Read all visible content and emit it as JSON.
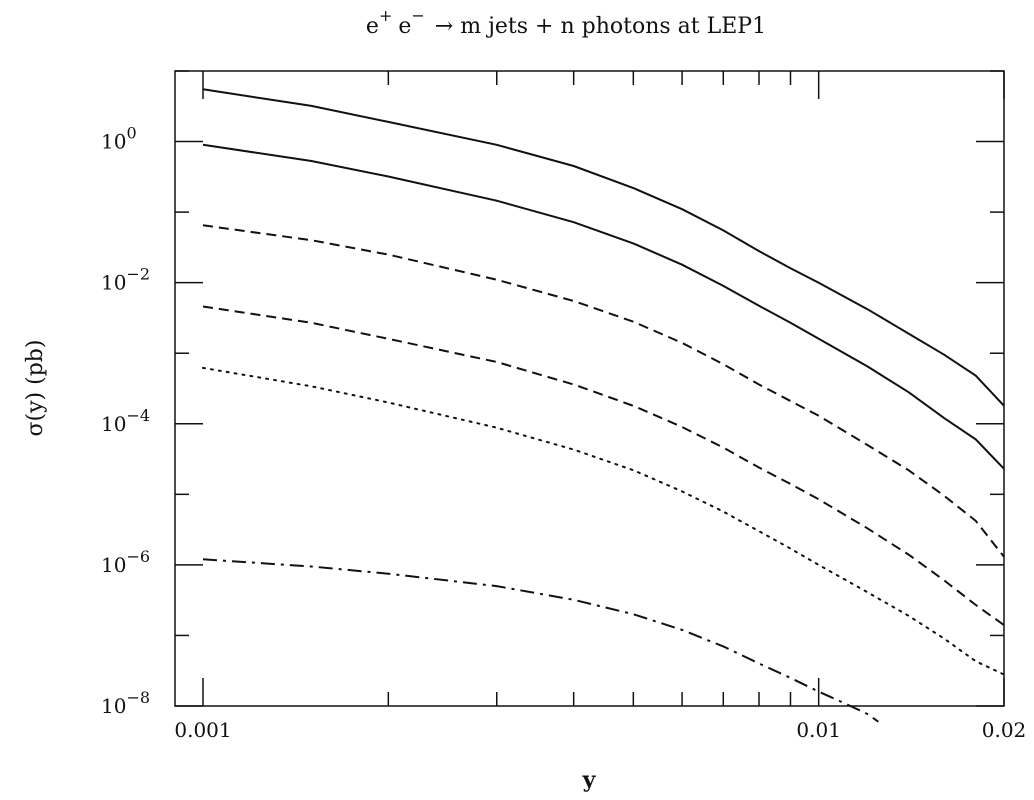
{
  "chart_data": {
    "type": "line",
    "title": "e+ e− → m jets + n photons at LEP1",
    "title_parts": {
      "lhs_e1": "e",
      "sup1": "+",
      "lhs_e2": "e",
      "sup2": "−",
      "rest": "→ m jets + n photons at LEP1"
    },
    "xlabel": "y",
    "ylabel": "σ(y) (pb)",
    "x_scale": "log",
    "y_scale": "log",
    "xlim": [
      0.001,
      0.02
    ],
    "ylim": [
      1e-08,
      10
    ],
    "x_ticks": [
      {
        "value": 0.001,
        "label": "0.001"
      },
      {
        "value": 0.01,
        "label": "0.01"
      },
      {
        "value": 0.02,
        "label": "0.02"
      }
    ],
    "y_ticks": [
      {
        "value": 1,
        "base": "10",
        "exp": "0"
      },
      {
        "value": 0.01,
        "base": "10",
        "exp": "−2"
      },
      {
        "value": 0.0001,
        "base": "10",
        "exp": "−4"
      },
      {
        "value": 1e-06,
        "base": "10",
        "exp": "−6"
      },
      {
        "value": 1e-08,
        "base": "10",
        "exp": "−8"
      }
    ],
    "grid": false,
    "legend": "none",
    "series": [
      {
        "style": "solid",
        "points": [
          [
            0.001,
            5.5
          ],
          [
            0.0015,
            3.2
          ],
          [
            0.002,
            1.9
          ],
          [
            0.003,
            0.9
          ],
          [
            0.004,
            0.45
          ],
          [
            0.005,
            0.22
          ],
          [
            0.006,
            0.11
          ],
          [
            0.007,
            0.055
          ],
          [
            0.008,
            0.028
          ],
          [
            0.009,
            0.016
          ],
          [
            0.01,
            0.01
          ],
          [
            0.012,
            0.0042
          ],
          [
            0.014,
            0.0019
          ],
          [
            0.016,
            0.00095
          ],
          [
            0.018,
            0.00048
          ],
          [
            0.02,
            0.00018
          ]
        ]
      },
      {
        "style": "solid",
        "points": [
          [
            0.001,
            0.9
          ],
          [
            0.0015,
            0.53
          ],
          [
            0.002,
            0.32
          ],
          [
            0.003,
            0.145
          ],
          [
            0.004,
            0.072
          ],
          [
            0.005,
            0.036
          ],
          [
            0.006,
            0.018
          ],
          [
            0.007,
            0.009
          ],
          [
            0.008,
            0.0047
          ],
          [
            0.009,
            0.0027
          ],
          [
            0.01,
            0.0016
          ],
          [
            0.012,
            0.00065
          ],
          [
            0.014,
            0.00028
          ],
          [
            0.016,
            0.00012
          ],
          [
            0.018,
            6e-05
          ],
          [
            0.02,
            2.3e-05
          ]
        ]
      },
      {
        "style": "dashed",
        "points": [
          [
            0.001,
            0.065
          ],
          [
            0.0015,
            0.04
          ],
          [
            0.002,
            0.025
          ],
          [
            0.003,
            0.011
          ],
          [
            0.004,
            0.0055
          ],
          [
            0.005,
            0.0028
          ],
          [
            0.006,
            0.0014
          ],
          [
            0.007,
            0.0007
          ],
          [
            0.008,
            0.00036
          ],
          [
            0.009,
            0.00021
          ],
          [
            0.01,
            0.00013
          ],
          [
            0.012,
            5e-05
          ],
          [
            0.014,
            2.2e-05
          ],
          [
            0.016,
            9.5e-06
          ],
          [
            0.018,
            4.2e-06
          ],
          [
            0.02,
            1.3e-06
          ]
        ]
      },
      {
        "style": "dashed",
        "points": [
          [
            0.001,
            0.0046
          ],
          [
            0.0015,
            0.0027
          ],
          [
            0.002,
            0.0016
          ],
          [
            0.003,
            0.00075
          ],
          [
            0.004,
            0.00036
          ],
          [
            0.005,
            0.00018
          ],
          [
            0.006,
            9e-05
          ],
          [
            0.007,
            4.6e-05
          ],
          [
            0.008,
            2.4e-05
          ],
          [
            0.009,
            1.4e-05
          ],
          [
            0.01,
            8.5e-06
          ],
          [
            0.012,
            3.3e-06
          ],
          [
            0.014,
            1.4e-06
          ],
          [
            0.016,
            6e-07
          ],
          [
            0.018,
            2.7e-07
          ],
          [
            0.02,
            1.4e-07
          ]
        ]
      },
      {
        "style": "dotted",
        "points": [
          [
            0.001,
            0.00062
          ],
          [
            0.0015,
            0.00034
          ],
          [
            0.002,
            0.0002
          ],
          [
            0.003,
            8.8e-05
          ],
          [
            0.004,
            4.3e-05
          ],
          [
            0.005,
            2.2e-05
          ],
          [
            0.006,
            1.1e-05
          ],
          [
            0.007,
            5.7e-06
          ],
          [
            0.008,
            3e-06
          ],
          [
            0.009,
            1.7e-06
          ],
          [
            0.01,
            1e-06
          ],
          [
            0.012,
            4.1e-07
          ],
          [
            0.014,
            1.9e-07
          ],
          [
            0.016,
            9e-08
          ],
          [
            0.018,
            4.3e-08
          ],
          [
            0.02,
            2.8e-08
          ]
        ]
      },
      {
        "style": "dashdot",
        "points": [
          [
            0.001,
            1.2e-06
          ],
          [
            0.0015,
            9.5e-07
          ],
          [
            0.002,
            7.5e-07
          ],
          [
            0.003,
            5e-07
          ],
          [
            0.004,
            3.2e-07
          ],
          [
            0.005,
            2e-07
          ],
          [
            0.006,
            1.2e-07
          ],
          [
            0.007,
            7e-08
          ],
          [
            0.008,
            4e-08
          ],
          [
            0.009,
            2.5e-08
          ],
          [
            0.01,
            1.6e-08
          ],
          [
            0.011,
            1.1e-08
          ],
          [
            0.012,
            7.7e-09
          ],
          [
            0.0125,
            6e-09
          ]
        ]
      }
    ]
  }
}
